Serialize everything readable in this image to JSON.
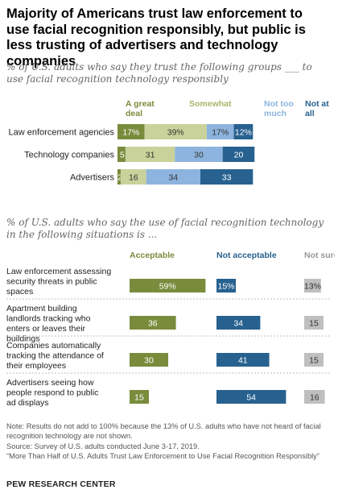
{
  "title": "Majority of Americans trust law enforcement to use facial recognition responsibly, but public is less trusting of advertisers and technology companies",
  "chart_data": [
    {
      "type": "bar",
      "stacked": true,
      "orientation": "horizontal",
      "subtitle": "% of U.S. adults who say they trust the following groups ___ to use facial recognition technology responsibly",
      "categories": [
        "Law enforcement agencies",
        "Technology companies",
        "Advertisers"
      ],
      "series": [
        {
          "name": "A great deal",
          "color": "#7a8c3c",
          "values": [
            17,
            5,
            2
          ],
          "labels": [
            "17%",
            "5",
            "2"
          ]
        },
        {
          "name": "Somewhat",
          "color": "#c9d29a",
          "values": [
            39,
            31,
            16
          ],
          "labels": [
            "39%",
            "31",
            "16"
          ]
        },
        {
          "name": "Not too much",
          "color": "#8db4de",
          "values": [
            17,
            30,
            34
          ],
          "labels": [
            "17%",
            "30",
            "34"
          ]
        },
        {
          "name": "Not at all",
          "color": "#27618f",
          "values": [
            12,
            20,
            33
          ],
          "labels": [
            "12%",
            "20",
            "33"
          ]
        }
      ]
    },
    {
      "type": "bar",
      "orientation": "horizontal",
      "subtitle": "% of U.S. adults who say the use of facial recognition technology in the following situations is ...",
      "categories": [
        "Law enforcement assessing security threats in public spaces",
        "Apartment building landlords tracking who enters or leaves their buildings",
        "Companies automatically tracking the attendance of their employees",
        "Advertisers seeing how people respond to public ad displays"
      ],
      "series": [
        {
          "name": "Acceptable",
          "color": "#7a8c3c",
          "values": [
            59,
            36,
            30,
            15
          ],
          "labels": [
            "59%",
            "36",
            "30",
            "15"
          ]
        },
        {
          "name": "Not acceptable",
          "color": "#27618f",
          "values": [
            15,
            34,
            41,
            54
          ],
          "labels": [
            "15%",
            "34",
            "41",
            "54"
          ]
        },
        {
          "name": "Not sure",
          "color": "#bfbfbf",
          "values": [
            13,
            15,
            15,
            16
          ],
          "labels": [
            "13%",
            "15",
            "15",
            "16"
          ]
        }
      ]
    }
  ],
  "notes": {
    "note": "Note: Results do not add to 100% because the 13% of U.S. adults who have not heard of facial recognition technology are not shown.",
    "source": "Source: Survey of U.S. adults conducted June 3-17, 2019.",
    "report": "“More Than Half of U.S. Adults Trust Law Enforcement to Use Facial Recognition Responsibly”"
  },
  "brand": "PEW RESEARCH CENTER"
}
